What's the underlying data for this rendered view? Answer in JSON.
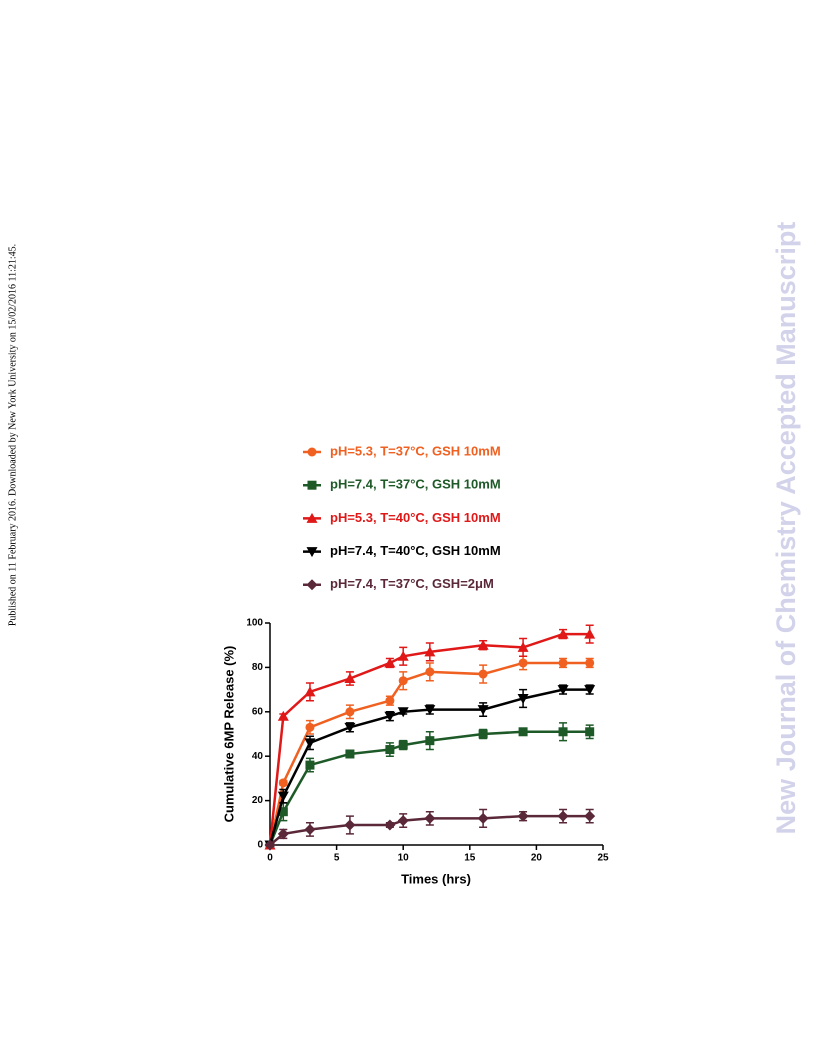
{
  "side_note": "Published on 11 February 2016. Downloaded by New York University on 15/02/2016 11:21:45.",
  "watermark": "New Journal of Chemistry Accepted Manuscript",
  "chart_data": {
    "type": "line",
    "xlabel": "Times (hrs)",
    "ylabel": "Cumulative 6MP Release (%)",
    "x": [
      0,
      1,
      3,
      6,
      9,
      10,
      12,
      16,
      19,
      22,
      24
    ],
    "series": [
      {
        "name": "pH=5.3, T=37°C, GSH 10mM",
        "color": "#f06020",
        "marker": "circle",
        "values": [
          0,
          28,
          53,
          60,
          65,
          74,
          78,
          77,
          82,
          82,
          82
        ],
        "errors": [
          0,
          1,
          3,
          3,
          2,
          4,
          4,
          4,
          3,
          2,
          2
        ]
      },
      {
        "name": "pH=7.4, T=37°C, GSH 10mM",
        "color": "#1e5a28",
        "marker": "square",
        "values": [
          0,
          15,
          36,
          41,
          43,
          45,
          47,
          50,
          51,
          51,
          51
        ],
        "errors": [
          0,
          4,
          3,
          1,
          3,
          2,
          4,
          2,
          1,
          4,
          3
        ]
      },
      {
        "name": "pH=5.3, T=40°C, GSH 10mM",
        "color": "#e01818",
        "marker": "triangle",
        "values": [
          0,
          58,
          69,
          75,
          82,
          85,
          87,
          90,
          89,
          95,
          95
        ],
        "errors": [
          0,
          1,
          4,
          3,
          2,
          4,
          4,
          2,
          4,
          2,
          4
        ]
      },
      {
        "name": "pH=7.4, T=40°C, GSH 10mM",
        "color": "#000000",
        "marker": "triangle-down",
        "values": [
          0,
          22,
          46,
          53,
          58,
          60,
          61,
          61,
          66,
          70,
          70
        ],
        "errors": [
          0,
          3,
          3,
          2,
          2,
          1,
          2,
          3,
          4,
          2,
          2
        ]
      },
      {
        "name": "pH=7.4, T=37°C, GSH=2μM",
        "color": "#5a2838",
        "marker": "diamond",
        "values": [
          0,
          5,
          7,
          9,
          9,
          11,
          12,
          12,
          13,
          13,
          13
        ],
        "errors": [
          0,
          2,
          3,
          4,
          1,
          3,
          3,
          4,
          2,
          3,
          3
        ]
      }
    ],
    "xlim": [
      0,
      25
    ],
    "xticks": [
      0,
      5,
      10,
      15,
      20,
      25
    ],
    "ylim": [
      0,
      100
    ],
    "yticks": [
      0,
      20,
      40,
      60,
      80,
      100
    ]
  }
}
